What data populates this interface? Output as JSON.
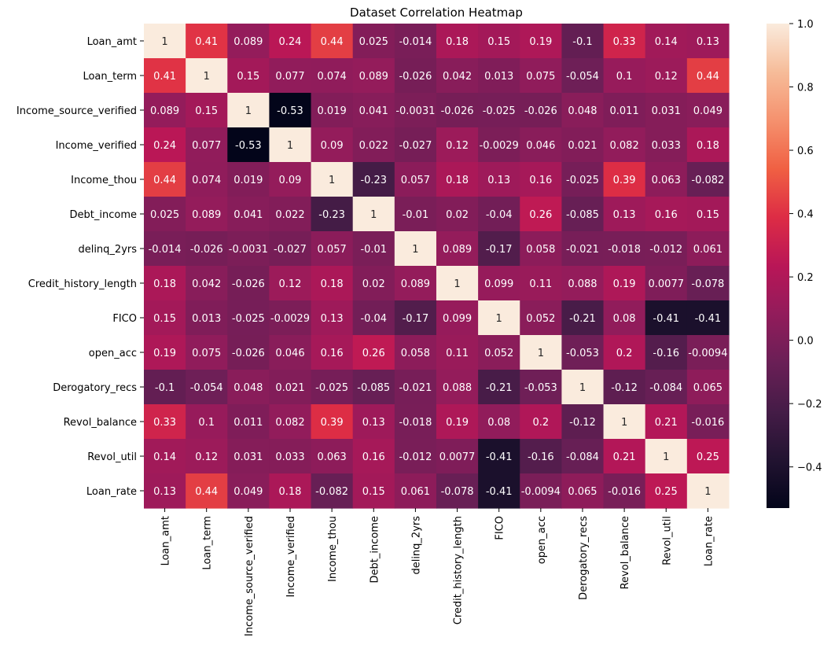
{
  "chart_data": {
    "type": "heatmap",
    "title": "Dataset Correlation Heatmap",
    "xlabel": "",
    "ylabel": "",
    "labels": [
      "Loan_amt",
      "Loan_term",
      "Income_source_verified",
      "Income_verified",
      "Income_thou",
      "Debt_income",
      "delinq_2yrs",
      "Credit_history_length",
      "FICO",
      "open_acc",
      "Derogatory_recs",
      "Revol_balance",
      "Revol_util",
      "Loan_rate"
    ],
    "values": [
      [
        "1",
        "0.41",
        "0.089",
        "0.24",
        "0.44",
        "0.025",
        "-0.014",
        "0.18",
        "0.15",
        "0.19",
        "-0.1",
        "0.33",
        "0.14",
        "0.13"
      ],
      [
        "0.41",
        "1",
        "0.15",
        "0.077",
        "0.074",
        "0.089",
        "-0.026",
        "0.042",
        "0.013",
        "0.075",
        "-0.054",
        "0.1",
        "0.12",
        "0.44"
      ],
      [
        "0.089",
        "0.15",
        "1",
        "-0.53",
        "0.019",
        "0.041",
        "-0.0031",
        "-0.026",
        "-0.025",
        "-0.026",
        "0.048",
        "0.011",
        "0.031",
        "0.049"
      ],
      [
        "0.24",
        "0.077",
        "-0.53",
        "1",
        "0.09",
        "0.022",
        "-0.027",
        "0.12",
        "-0.0029",
        "0.046",
        "0.021",
        "0.082",
        "0.033",
        "0.18"
      ],
      [
        "0.44",
        "0.074",
        "0.019",
        "0.09",
        "1",
        "-0.23",
        "0.057",
        "0.18",
        "0.13",
        "0.16",
        "-0.025",
        "0.39",
        "0.063",
        "-0.082"
      ],
      [
        "0.025",
        "0.089",
        "0.041",
        "0.022",
        "-0.23",
        "1",
        "-0.01",
        "0.02",
        "-0.04",
        "0.26",
        "-0.085",
        "0.13",
        "0.16",
        "0.15"
      ],
      [
        "-0.014",
        "-0.026",
        "-0.0031",
        "-0.027",
        "0.057",
        "-0.01",
        "1",
        "0.089",
        "-0.17",
        "0.058",
        "-0.021",
        "-0.018",
        "-0.012",
        "0.061"
      ],
      [
        "0.18",
        "0.042",
        "-0.026",
        "0.12",
        "0.18",
        "0.02",
        "0.089",
        "1",
        "0.099",
        "0.11",
        "0.088",
        "0.19",
        "0.0077",
        "-0.078"
      ],
      [
        "0.15",
        "0.013",
        "-0.025",
        "-0.0029",
        "0.13",
        "-0.04",
        "-0.17",
        "0.099",
        "1",
        "0.052",
        "-0.21",
        "0.08",
        "-0.41",
        "-0.41"
      ],
      [
        "0.19",
        "0.075",
        "-0.026",
        "0.046",
        "0.16",
        "0.26",
        "0.058",
        "0.11",
        "0.052",
        "1",
        "-0.053",
        "0.2",
        "-0.16",
        "-0.0094"
      ],
      [
        "-0.1",
        "-0.054",
        "0.048",
        "0.021",
        "-0.025",
        "-0.085",
        "-0.021",
        "0.088",
        "-0.21",
        "-0.053",
        "1",
        "-0.12",
        "-0.084",
        "0.065"
      ],
      [
        "0.33",
        "0.1",
        "0.011",
        "0.082",
        "0.39",
        "0.13",
        "-0.018",
        "0.19",
        "0.08",
        "0.2",
        "-0.12",
        "1",
        "0.21",
        "-0.016"
      ],
      [
        "0.14",
        "0.12",
        "0.031",
        "0.033",
        "0.063",
        "0.16",
        "-0.012",
        "0.0077",
        "-0.41",
        "-0.16",
        "-0.084",
        "0.21",
        "1",
        "0.25"
      ],
      [
        "0.13",
        "0.44",
        "0.049",
        "0.18",
        "-0.082",
        "0.15",
        "0.061",
        "-0.078",
        "-0.41",
        "-0.0094",
        "0.065",
        "-0.016",
        "0.25",
        "1"
      ]
    ],
    "colorbar": {
      "range": [
        -0.53,
        1.0
      ],
      "ticks": [
        -0.4,
        -0.2,
        0.0,
        0.2,
        0.4,
        0.6,
        0.8,
        1.0
      ],
      "tick_labels": [
        "−0.4",
        "−0.2",
        "0.0",
        "0.2",
        "0.4",
        "0.6",
        "0.8",
        "1.0"
      ],
      "colormap": "rocket",
      "colormap_stops": [
        "#03051a",
        "#221331",
        "#451c47",
        "#6a1f56",
        "#921c5b",
        "#b91657",
        "#dd2c45",
        "#f06043",
        "#f5916e",
        "#f6bc99",
        "#faebdd"
      ]
    }
  }
}
